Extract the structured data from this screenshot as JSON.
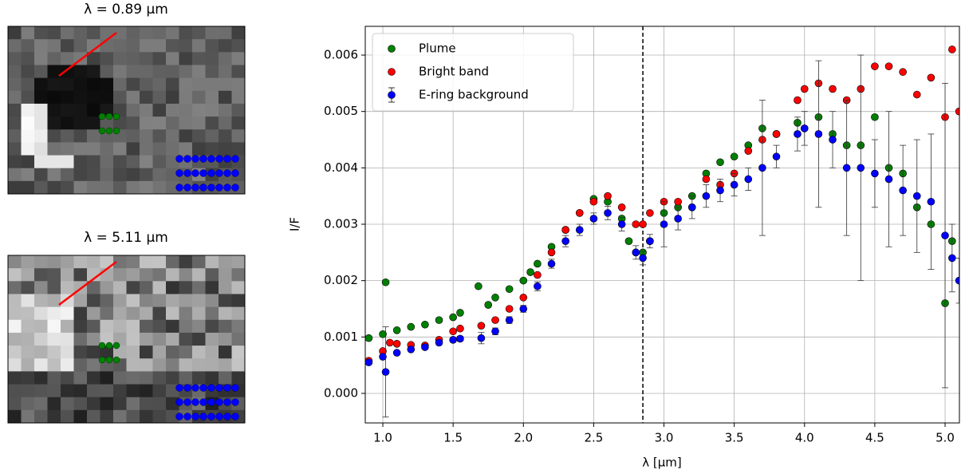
{
  "images": [
    {
      "title": "λ = 0.89 µm"
    },
    {
      "title": "λ = 5.11 µm"
    }
  ],
  "chart_data": {
    "type": "scatter",
    "xlabel": "λ [µm]",
    "ylabel": "I/F",
    "xlim": [
      0.875,
      5.102
    ],
    "ylim": [
      -0.000524,
      0.00651
    ],
    "xticks": [
      {
        "value": 1,
        "label": "1.0"
      },
      {
        "value": 1.5,
        "label": "1.5"
      },
      {
        "value": 2,
        "label": "2.0"
      },
      2.5,
      {
        "value": 3,
        "label": "3.0"
      },
      3.5,
      {
        "value": 4,
        "label": "4.0"
      },
      4.5,
      {
        "value": 5,
        "label": "5.0"
      }
    ],
    "yticks": [
      {
        "value": 0,
        "label": "0.000"
      },
      0.001,
      0.002,
      0.003,
      0.004,
      0.005,
      0.006
    ],
    "grid": true,
    "legend": "upper left",
    "vline": 2.85,
    "series": [
      {
        "name": "Plume",
        "color": "#008000",
        "x": [
          0.9,
          1.0,
          1.02,
          1.1,
          1.2,
          1.3,
          1.4,
          1.5,
          1.55,
          1.68,
          1.75,
          1.8,
          1.9,
          2.0,
          2.05,
          2.1,
          2.2,
          2.3,
          2.4,
          2.5,
          2.6,
          2.7,
          2.75,
          2.8,
          2.85,
          2.9,
          3.0,
          3.1,
          3.2,
          3.3,
          3.4,
          3.5,
          3.6,
          3.7,
          3.8,
          3.95,
          4.0,
          4.1,
          4.2,
          4.3,
          4.4,
          4.5,
          4.6,
          4.7,
          4.8,
          4.9,
          5.0,
          5.05
        ],
        "values": [
          0.00098,
          0.00105,
          0.00197,
          0.00112,
          0.00118,
          0.00122,
          0.0013,
          0.00135,
          0.00143,
          0.0019,
          0.00157,
          0.0017,
          0.00185,
          0.002,
          0.00215,
          0.0023,
          0.0026,
          0.0029,
          0.0032,
          0.00345,
          0.0034,
          0.0031,
          0.0027,
          0.0025,
          0.0025,
          0.0027,
          0.0032,
          0.0033,
          0.0035,
          0.0039,
          0.0041,
          0.0042,
          0.0044,
          0.0047,
          0.0046,
          0.0048,
          0.0047,
          0.0049,
          0.0046,
          0.0044,
          0.0044,
          0.0049,
          0.004,
          0.0039,
          0.0033,
          0.003,
          0.0016,
          0.0027
        ]
      },
      {
        "name": "Bright band",
        "color": "#ff0000",
        "x": [
          0.9,
          1.0,
          1.05,
          1.1,
          1.2,
          1.3,
          1.4,
          1.5,
          1.55,
          1.7,
          1.8,
          1.9,
          2.0,
          2.1,
          2.2,
          2.3,
          2.4,
          2.5,
          2.6,
          2.7,
          2.8,
          2.85,
          2.9,
          3.0,
          3.1,
          3.2,
          3.3,
          3.4,
          3.5,
          3.6,
          3.7,
          3.8,
          3.95,
          4.0,
          4.1,
          4.2,
          4.3,
          4.4,
          4.5,
          4.6,
          4.7,
          4.8,
          4.9,
          5.0,
          5.05,
          5.1
        ],
        "values": [
          0.00058,
          0.00075,
          0.0009,
          0.00088,
          0.00086,
          0.00085,
          0.00095,
          0.0011,
          0.00115,
          0.0012,
          0.0013,
          0.0015,
          0.0017,
          0.0021,
          0.0025,
          0.0029,
          0.0032,
          0.0034,
          0.0035,
          0.0033,
          0.003,
          0.003,
          0.0032,
          0.0034,
          0.0034,
          0.0033,
          0.0038,
          0.0037,
          0.0039,
          0.0043,
          0.0045,
          0.0046,
          0.0052,
          0.0054,
          0.0055,
          0.0054,
          0.0052,
          0.0054,
          0.0058,
          0.0058,
          0.0057,
          0.0053,
          0.0056,
          0.0049,
          0.0061,
          0.005
        ]
      },
      {
        "name": "E-ring background",
        "color": "#0000ff",
        "x": [
          0.9,
          1.0,
          1.02,
          1.1,
          1.2,
          1.3,
          1.4,
          1.5,
          1.55,
          1.7,
          1.8,
          1.9,
          2.0,
          2.1,
          2.2,
          2.3,
          2.4,
          2.5,
          2.6,
          2.7,
          2.8,
          2.85,
          2.9,
          3.0,
          3.1,
          3.2,
          3.3,
          3.4,
          3.5,
          3.6,
          3.7,
          3.8,
          3.95,
          4.0,
          4.1,
          4.2,
          4.3,
          4.4,
          4.5,
          4.6,
          4.7,
          4.8,
          4.9,
          5.0,
          5.05,
          5.1
        ],
        "values": [
          0.00055,
          0.00065,
          0.00038,
          0.00072,
          0.00078,
          0.00082,
          0.0009,
          0.00095,
          0.00097,
          0.00098,
          0.0011,
          0.0013,
          0.0015,
          0.0019,
          0.0023,
          0.0027,
          0.0029,
          0.0031,
          0.0032,
          0.003,
          0.0025,
          0.0024,
          0.0027,
          0.003,
          0.0031,
          0.0033,
          0.0035,
          0.0036,
          0.0037,
          0.0038,
          0.004,
          0.0042,
          0.0046,
          0.0047,
          0.0046,
          0.0045,
          0.004,
          0.004,
          0.0039,
          0.0038,
          0.0036,
          0.0035,
          0.0034,
          0.0028,
          0.0024,
          0.002
        ],
        "errors": [
          3e-05,
          3e-05,
          0.0008,
          3e-05,
          3e-05,
          3e-05,
          4e-05,
          4e-05,
          4e-05,
          0.0001,
          6e-05,
          6e-05,
          6e-05,
          8e-05,
          8e-05,
          0.0001,
          0.0001,
          0.0001,
          0.00012,
          0.00012,
          0.00012,
          0.00012,
          0.00012,
          0.0004,
          0.0002,
          0.0002,
          0.0002,
          0.0002,
          0.0002,
          0.0002,
          0.0012,
          0.0002,
          0.0003,
          0.0003,
          0.0013,
          0.0005,
          0.0012,
          0.002,
          0.0006,
          0.0012,
          0.0008,
          0.001,
          0.0012,
          0.0027,
          0.0006,
          0.0004
        ]
      }
    ]
  }
}
